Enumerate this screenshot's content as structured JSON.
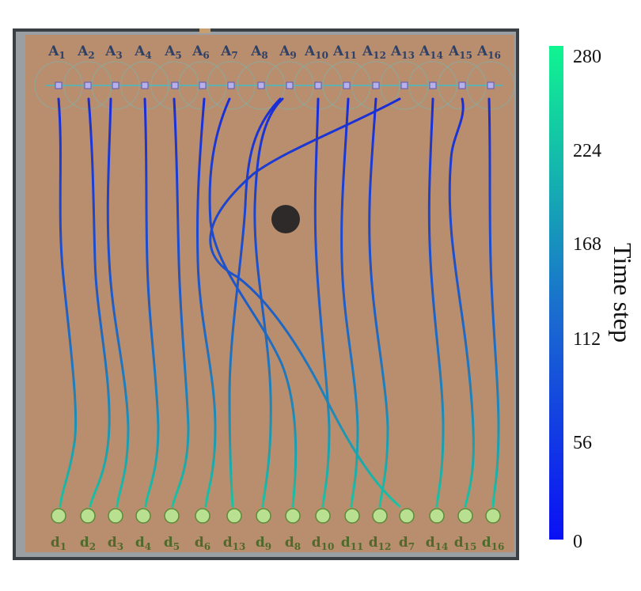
{
  "figure": {
    "arena_color": "#b98e6e",
    "frame_color": "#3a3f44",
    "obstacle_color": "#2e2a2a"
  },
  "agents": [
    {
      "letter": "A",
      "sub": "1"
    },
    {
      "letter": "A",
      "sub": "2"
    },
    {
      "letter": "A",
      "sub": "3"
    },
    {
      "letter": "A",
      "sub": "4"
    },
    {
      "letter": "A",
      "sub": "5"
    },
    {
      "letter": "A",
      "sub": "6"
    },
    {
      "letter": "A",
      "sub": "7"
    },
    {
      "letter": "A",
      "sub": "8"
    },
    {
      "letter": "A",
      "sub": "9"
    },
    {
      "letter": "A",
      "sub": "10"
    },
    {
      "letter": "A",
      "sub": "11"
    },
    {
      "letter": "A",
      "sub": "12"
    },
    {
      "letter": "A",
      "sub": "13"
    },
    {
      "letter": "A",
      "sub": "14"
    },
    {
      "letter": "A",
      "sub": "15"
    },
    {
      "letter": "A",
      "sub": "16"
    }
  ],
  "goals": [
    {
      "letter": "d",
      "sub": "1"
    },
    {
      "letter": "d",
      "sub": "2"
    },
    {
      "letter": "d",
      "sub": "3"
    },
    {
      "letter": "d",
      "sub": "4"
    },
    {
      "letter": "d",
      "sub": "5"
    },
    {
      "letter": "d",
      "sub": "6"
    },
    {
      "letter": "d",
      "sub": "13"
    },
    {
      "letter": "d",
      "sub": "9"
    },
    {
      "letter": "d",
      "sub": "8"
    },
    {
      "letter": "d",
      "sub": "10"
    },
    {
      "letter": "d",
      "sub": "11"
    },
    {
      "letter": "d",
      "sub": "12"
    },
    {
      "letter": "d",
      "sub": "7"
    },
    {
      "letter": "d",
      "sub": "14"
    },
    {
      "letter": "d",
      "sub": "15"
    },
    {
      "letter": "d",
      "sub": "16"
    }
  ],
  "colorbar": {
    "title": "Time step",
    "ticks": [
      "280",
      "224",
      "168",
      "112",
      "56",
      "0"
    ],
    "color_low": "#0a10f5",
    "color_mid": "#1a6ad0",
    "color_high": "#10f590"
  }
}
